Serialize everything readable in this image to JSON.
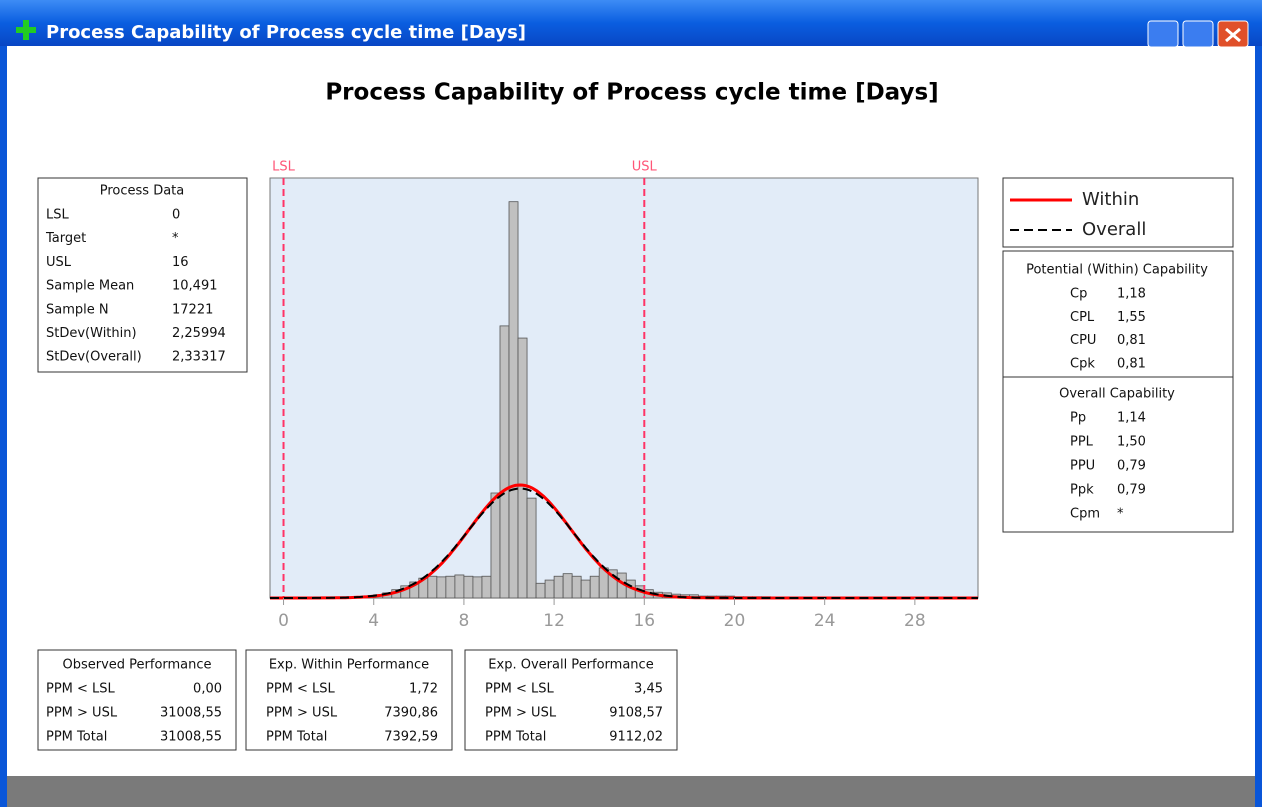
{
  "window_title": "Process Capability of Process cycle time [Days]",
  "chart_data": {
    "type": "histogram",
    "title": "Process Capability of Process cycle time [Days]",
    "bins": [
      2.0,
      2.4,
      2.8,
      3.2,
      3.6,
      4.0,
      4.4,
      4.8,
      5.2,
      5.6,
      6.0,
      6.4,
      6.8,
      7.2,
      7.6,
      8.0,
      8.4,
      8.8,
      9.2,
      9.6,
      10.0,
      10.4,
      10.8,
      11.2,
      11.6,
      12.0,
      12.4,
      12.8,
      13.2,
      13.6,
      14.0,
      14.4,
      14.8,
      15.2,
      15.6,
      16.0,
      16.4,
      16.8,
      17.2,
      17.6,
      18.0,
      18.4,
      18.8,
      19.2,
      19.6,
      20.0,
      20.4,
      20.8,
      21.2,
      21.6,
      22.0
    ],
    "values": [
      0,
      0,
      0.001,
      0.002,
      0.003,
      0.005,
      0.008,
      0.013,
      0.019,
      0.025,
      0.031,
      0.034,
      0.033,
      0.034,
      0.036,
      0.034,
      0.033,
      0.034,
      0.164,
      0.425,
      0.619,
      0.406,
      0.156,
      0.023,
      0.028,
      0.034,
      0.038,
      0.034,
      0.028,
      0.034,
      0.047,
      0.044,
      0.039,
      0.028,
      0.019,
      0.013,
      0.009,
      0.008,
      0.006,
      0.005,
      0.005,
      0.003,
      0.003,
      0.003,
      0.003,
      0.002,
      0.002,
      0.002,
      0.002,
      0.001
    ],
    "bar_color": "#c0c0c0",
    "series": [
      {
        "name": "Within",
        "color": "#ff0000",
        "mean": 10.491,
        "sd": 2.25994,
        "dash": false
      },
      {
        "name": "Overall",
        "color": "#000000",
        "mean": 10.491,
        "sd": 2.33317,
        "dash": true
      }
    ],
    "spec_lines": [
      {
        "label": "LSL",
        "value": 0
      },
      {
        "label": "USL",
        "value": 16
      }
    ],
    "xlim": [
      -0.6,
      30.8
    ],
    "xticks": [
      0,
      4,
      8,
      12,
      16,
      20,
      24,
      28
    ],
    "ylim": [
      0,
      0.656
    ]
  },
  "process_data": {
    "title": "Process Data",
    "rows": [
      [
        "LSL",
        "0"
      ],
      [
        "Target",
        "*"
      ],
      [
        "USL",
        "16"
      ],
      [
        "Sample Mean",
        "10,491"
      ],
      [
        "Sample N",
        "17221"
      ],
      [
        "StDev(Within)",
        "2,25994"
      ],
      [
        "StDev(Overall)",
        "2,33317"
      ]
    ]
  },
  "potential_capability": {
    "title": "Potential (Within) Capability",
    "rows": [
      [
        "Cp",
        "1,18"
      ],
      [
        "CPL",
        "1,55"
      ],
      [
        "CPU",
        "0,81"
      ],
      [
        "Cpk",
        "0,81"
      ]
    ]
  },
  "overall_capability": {
    "title": "Overall Capability",
    "rows": [
      [
        "Pp",
        "1,14"
      ],
      [
        "PPL",
        "1,50"
      ],
      [
        "PPU",
        "0,79"
      ],
      [
        "Ppk",
        "0,79"
      ],
      [
        "Cpm",
        "*"
      ]
    ]
  },
  "observed_performance": {
    "title": "Observed Performance",
    "rows": [
      [
        "PPM < LSL",
        "0,00"
      ],
      [
        "PPM > USL",
        "31008,55"
      ],
      [
        "PPM Total",
        "31008,55"
      ]
    ]
  },
  "exp_within_performance": {
    "title": "Exp. Within Performance",
    "rows": [
      [
        "PPM < LSL",
        "1,72"
      ],
      [
        "PPM > USL",
        "7390,86"
      ],
      [
        "PPM Total",
        "7392,59"
      ]
    ]
  },
  "exp_overall_performance": {
    "title": "Exp. Overall Performance",
    "rows": [
      [
        "PPM < LSL",
        "3,45"
      ],
      [
        "PPM > USL",
        "9108,57"
      ],
      [
        "PPM Total",
        "9112,02"
      ]
    ]
  }
}
